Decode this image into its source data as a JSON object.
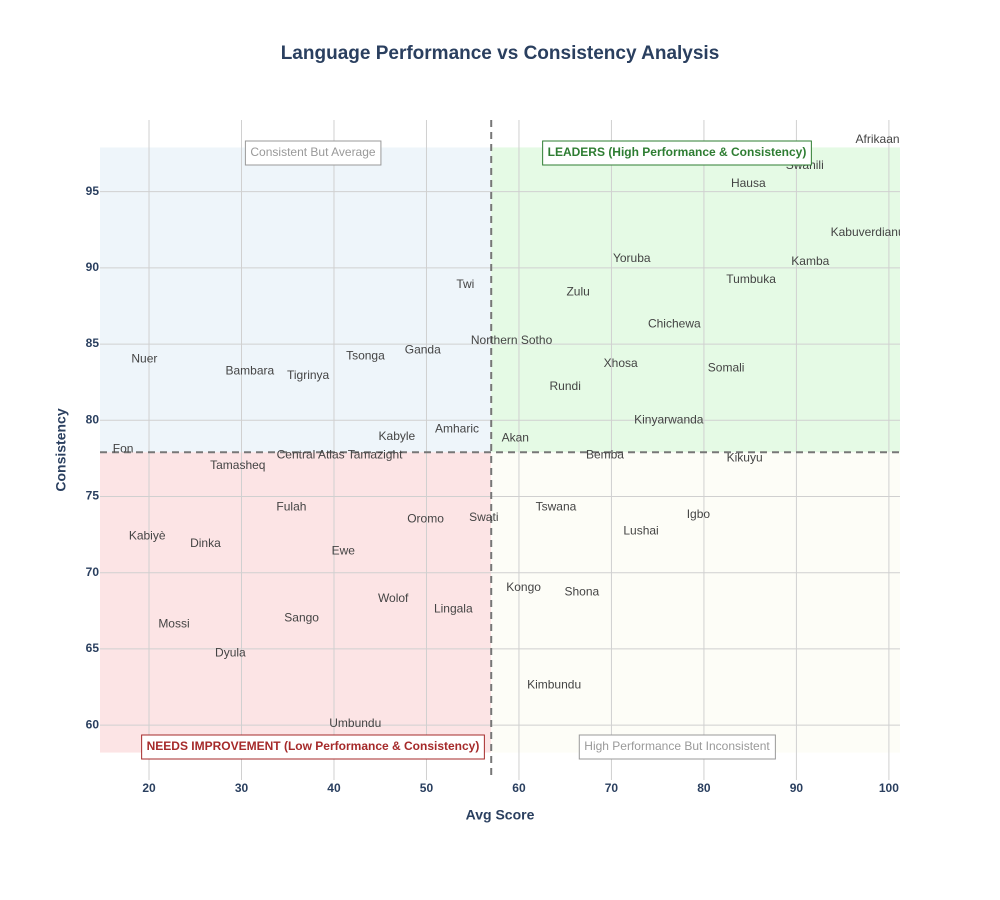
{
  "chart_data": {
    "type": "scatter",
    "title": "Language Performance vs Consistency Analysis",
    "x_label": "Avg Score",
    "y_label": "Consistency",
    "xlim": [
      14.7,
      101.2
    ],
    "ylim": [
      56.4,
      99.7
    ],
    "xticks": [
      20,
      30,
      40,
      50,
      60,
      70,
      80,
      90,
      100
    ],
    "yticks": [
      60,
      65,
      70,
      75,
      80,
      85,
      90,
      95
    ],
    "grid": true,
    "x_threshold": 57.0,
    "y_threshold": 77.9,
    "quadrant_ylim": [
      58.2,
      97.9
    ],
    "quadrant_colors": {
      "top_left": "#eef5fa",
      "top_right": "#e5fae5",
      "bottom_left": "#fce4e5",
      "bottom_right": "#fdfdf7"
    },
    "text_color": "#444444",
    "labels": [
      "Afrikaans",
      "Swahili",
      "Hausa",
      "Kabuverdianu",
      "Kamba",
      "Tumbuka",
      "Yoruba",
      "Zulu",
      "Chichewa",
      "Twi",
      "Northern Sotho",
      "Xhosa",
      "Somali",
      "Rundi",
      "Kinyarwanda",
      "Akan",
      "Bemba",
      "Kikuyu",
      "Nuer",
      "Bambara",
      "Tigrinya",
      "Tsonga",
      "Ganda",
      "Kabyle",
      "Amharic",
      "Fon",
      "Tamasheq",
      "Central Atlas Tamazight",
      "Fulah",
      "Oromo",
      "Swati",
      "Tswana",
      "Lushai",
      "Igbo",
      "Kabiyè",
      "Dinka",
      "Ewe",
      "Kongo",
      "Shona",
      "Wolof",
      "Lingala",
      "Sango",
      "Mossi",
      "Dyula",
      "Kimbundu",
      "Umbundu"
    ],
    "x": [
      99.1,
      90.9,
      84.8,
      97.7,
      91.5,
      85.1,
      72.2,
      66.4,
      76.8,
      54.2,
      59.2,
      71.0,
      82.4,
      65.0,
      76.2,
      59.6,
      69.3,
      84.4,
      19.5,
      30.9,
      37.2,
      43.4,
      49.6,
      46.8,
      53.3,
      17.2,
      29.6,
      40.6,
      35.4,
      49.9,
      56.2,
      64.0,
      73.2,
      79.4,
      19.8,
      26.1,
      41.0,
      60.5,
      66.8,
      46.4,
      52.9,
      36.5,
      22.7,
      28.8,
      63.8,
      42.3
    ],
    "values": [
      98.4,
      96.7,
      95.5,
      92.3,
      90.4,
      89.2,
      90.6,
      88.4,
      86.3,
      88.9,
      85.2,
      83.7,
      83.4,
      82.2,
      80.0,
      78.8,
      77.7,
      77.5,
      84.0,
      83.2,
      82.9,
      84.2,
      84.6,
      78.9,
      79.4,
      78.1,
      77.0,
      77.7,
      74.3,
      73.5,
      73.6,
      74.3,
      72.7,
      73.8,
      72.4,
      71.9,
      71.4,
      69.0,
      68.7,
      68.3,
      67.6,
      67.0,
      66.6,
      64.7,
      62.6,
      60.1
    ],
    "annotations": [
      {
        "text": "Consistent But Average",
        "color": "#999999",
        "bold": false
      },
      {
        "text": "LEADERS (High Performance & Consistency)",
        "color": "#2e7d32",
        "bold": true
      },
      {
        "text": "NEEDS IMPROVEMENT (Low Performance & Consistency)",
        "color": "#a52a2a",
        "bold": true
      },
      {
        "text": "High Performance But Inconsistent",
        "color": "#999999",
        "bold": false
      }
    ]
  }
}
